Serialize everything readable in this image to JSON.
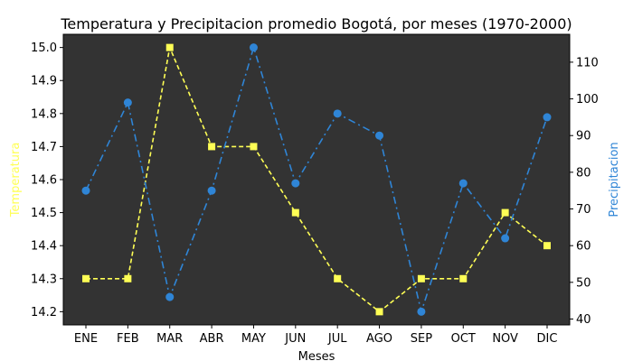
{
  "chart_data": {
    "type": "line",
    "title": "Temperatura y Precipitacion promedio Bogotá, por meses (1970-2000)",
    "xlabel": "Meses",
    "categories": [
      "ENE",
      "FEB",
      "MAR",
      "ABR",
      "MAY",
      "JUN",
      "JUL",
      "AGO",
      "SEP",
      "OCT",
      "NOV",
      "DIC"
    ],
    "y_left": {
      "label": "Temperatura",
      "color": "#ffff55",
      "lim": [
        14.16,
        15.04
      ],
      "ticks": [
        14.2,
        14.3,
        14.4,
        14.5,
        14.6,
        14.7,
        14.8,
        14.9,
        15.0
      ],
      "tick_labels": [
        "14.2",
        "14.3",
        "14.4",
        "14.5",
        "14.6",
        "14.7",
        "14.8",
        "14.9",
        "15.0"
      ]
    },
    "y_right": {
      "label": "Precipitacion",
      "color": "#2f85d6",
      "lim": [
        38.4,
        117.6
      ],
      "ticks": [
        40,
        50,
        60,
        70,
        80,
        90,
        100,
        110
      ],
      "tick_labels": [
        "40",
        "50",
        "60",
        "70",
        "80",
        "90",
        "100",
        "110"
      ]
    },
    "series": [
      {
        "name": "Temperatura",
        "axis": "left",
        "color": "#ffff55",
        "linestyle": "dashed",
        "marker": "square",
        "values": [
          14.3,
          14.3,
          15.0,
          14.7,
          14.7,
          14.5,
          14.3,
          14.2,
          14.3,
          14.3,
          14.5,
          14.4
        ]
      },
      {
        "name": "Precipitacion",
        "axis": "right",
        "color": "#2f85d6",
        "linestyle": "dashdot",
        "marker": "circle",
        "values": [
          75,
          99,
          46,
          75,
          114,
          77,
          96,
          90,
          42,
          77,
          62,
          95
        ]
      }
    ],
    "background": "#333333",
    "grid": false,
    "legend": "none"
  }
}
